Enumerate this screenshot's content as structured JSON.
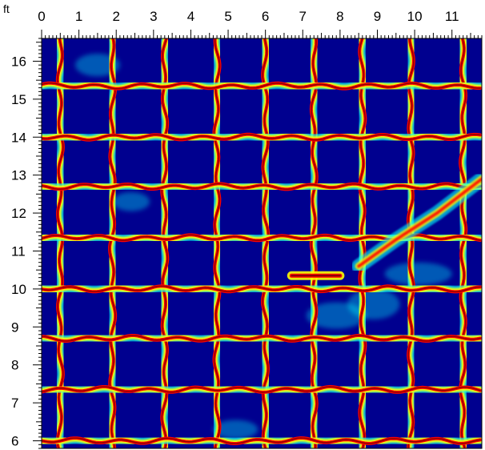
{
  "chart_data": {
    "type": "heatmap",
    "unit": "ft",
    "x_ticks": [
      "0",
      "1",
      "2",
      "3",
      "4",
      "5",
      "6",
      "7",
      "8",
      "9",
      "10",
      "11"
    ],
    "y_ticks": [
      "16",
      "15",
      "14",
      "13",
      "12",
      "11",
      "10",
      "9",
      "8",
      "7",
      "6"
    ],
    "xlim": [
      0,
      11.8
    ],
    "ylim": [
      5.8,
      16.6
    ],
    "grid_lines_x": [
      0.5,
      1.9,
      3.3,
      4.7,
      6.0,
      7.3,
      8.6,
      9.9,
      11.3
    ],
    "grid_lines_y": [
      6.0,
      7.35,
      8.7,
      10.0,
      11.35,
      12.7,
      14.0,
      15.35
    ],
    "colormap": [
      "#00007f",
      "#0000ff",
      "#00ffff",
      "#ffff00",
      "#ff0000",
      "#7f0000"
    ],
    "background_color": "#00008f",
    "colors": {
      "axis": "#000000",
      "frame": "#000000"
    }
  }
}
